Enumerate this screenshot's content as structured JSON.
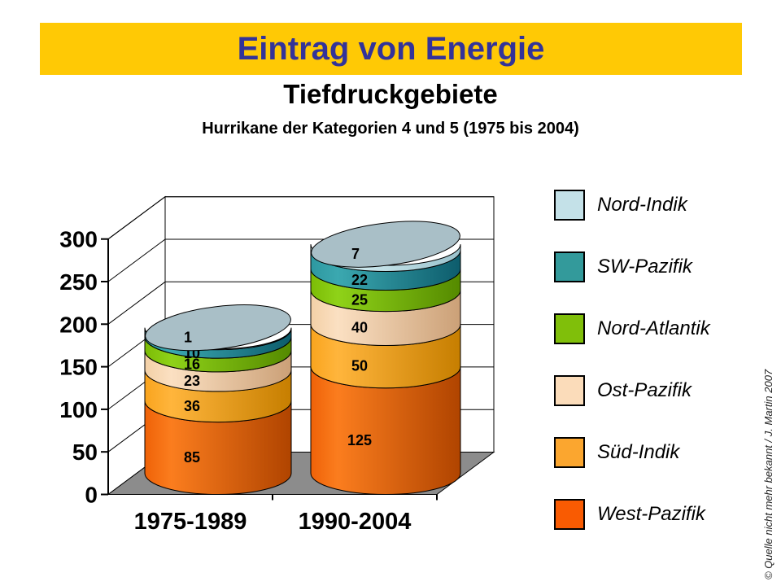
{
  "page": {
    "banner": {
      "title": "Eintrag von Energie",
      "bg_color": "#FFC905",
      "text_color": "#333399"
    },
    "subtitle": "Tiefdruckgebiete",
    "subsubtitle": "Hurrikane der Kategorien 4 und 5 (1975 bis 2004)",
    "credit": "© Quelle nicht mehr bekannt / J. Martin 2007"
  },
  "legend": {
    "position": "right",
    "items": [
      {
        "label": "Nord-Indik",
        "color": "#C4E1E8"
      },
      {
        "label": "SW-Pazifik",
        "color": "#339A9B"
      },
      {
        "label": "Nord-Atlantik",
        "color": "#80BF0A"
      },
      {
        "label": "Ost-Pazifik",
        "color": "#FBDCBA"
      },
      {
        "label": "Süd-Indik",
        "color": "#FBA62F"
      },
      {
        "label": "West-Pazifik",
        "color": "#F95B02"
      }
    ]
  },
  "chart_data": {
    "type": "bar",
    "subtype": "3d-stacked-cylinder",
    "title": "Tiefdruckgebiete",
    "subtitle": "Hurrikane der Kategorien 4 und 5 (1975 bis 2004)",
    "categories": [
      "1975-1989",
      "1990-2004"
    ],
    "series": [
      {
        "name": "West-Pazifik",
        "values": [
          85,
          125
        ],
        "color": "#F95B02",
        "shades": [
          "#EF6208",
          "#FB7D1E",
          "#B04400"
        ]
      },
      {
        "name": "Süd-Indik",
        "values": [
          36,
          50
        ],
        "color": "#FBA62F",
        "shades": [
          "#F9A41E",
          "#FFB53C",
          "#C67E00"
        ]
      },
      {
        "name": "Ost-Pazifik",
        "values": [
          23,
          40
        ],
        "color": "#FBDCBA",
        "shades": [
          "#F3D0A6",
          "#FBE0C2",
          "#CBA077"
        ]
      },
      {
        "name": "Nord-Atlantik",
        "values": [
          16,
          25
        ],
        "color": "#80BF0A",
        "shades": [
          "#7CBC06",
          "#8FD218",
          "#558A00"
        ]
      },
      {
        "name": "SW-Pazifik",
        "values": [
          10,
          22
        ],
        "color": "#339A9B",
        "shades": [
          "#2E98A0",
          "#3BA8B0",
          "#0D5C6C"
        ]
      },
      {
        "name": "Nord-Indik",
        "values": [
          1,
          7
        ],
        "color": "#C4E1E8",
        "shades": [
          "#C6E4EA",
          "#D9F1F5",
          "#9AC2CC"
        ]
      }
    ],
    "y_ticks": [
      0,
      50,
      100,
      150,
      200,
      250,
      300
    ],
    "ylim": [
      0,
      300
    ],
    "grid": true,
    "legend_position": "right",
    "cap_color": "#A9BFC7",
    "floor_color": "#8C8C8C",
    "wall_color": "#FFFFFF"
  }
}
